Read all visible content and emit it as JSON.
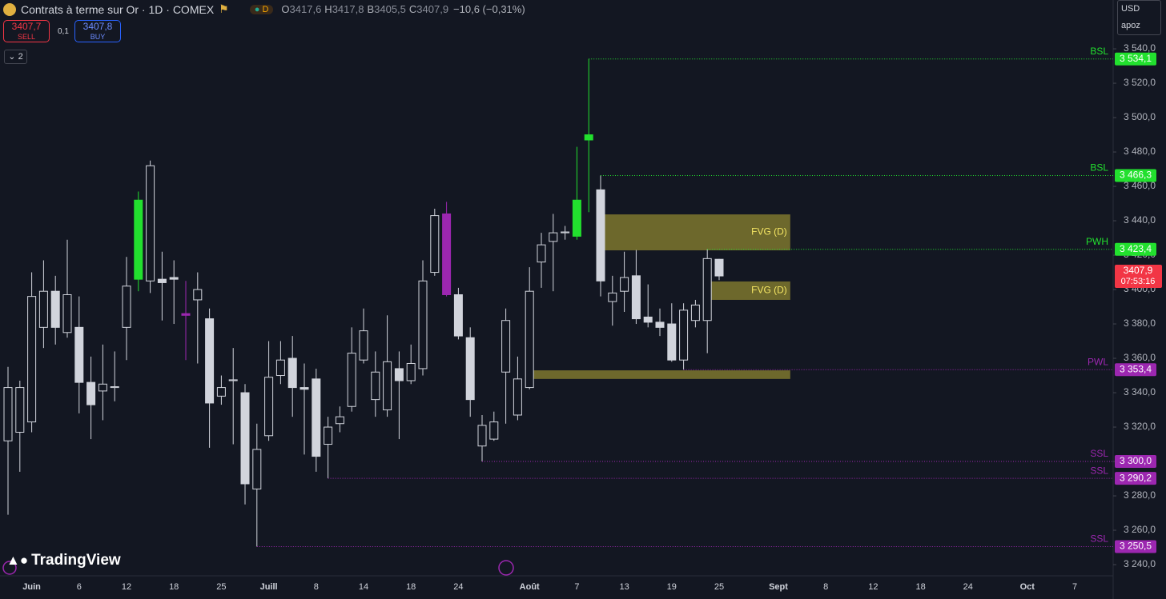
{
  "header": {
    "title": "Contrats à terme sur Or · 1D · COMEX",
    "badge": "D",
    "ohlc": [
      {
        "key": "O",
        "value": "3417,6"
      },
      {
        "key": "H",
        "value": "3417,8"
      },
      {
        "key": "B",
        "value": "3405,5"
      },
      {
        "key": "C",
        "value": "3407,9"
      }
    ],
    "change": "−10,6 (−0,31%)",
    "sell_price": "3407,7",
    "sell": "SELL",
    "spread": "0,1",
    "buy_price": "3407,8",
    "buy": "BUY",
    "indicators": "2",
    "currency": "USD",
    "user": "apoz",
    "brand": "TradingView"
  },
  "chart_data": {
    "type": "candlestick",
    "categories": [
      null,
      null,
      "Juin",
      null,
      null,
      null,
      "6",
      null,
      null,
      null,
      "12",
      null,
      null,
      null,
      "18",
      null,
      null,
      null,
      "25",
      null,
      null,
      null,
      "Juill",
      null,
      null,
      null,
      "8",
      null,
      null,
      null,
      "14",
      null,
      null,
      null,
      "18",
      null,
      null,
      null,
      "24",
      null,
      null,
      null,
      null,
      null,
      "Août",
      null,
      null,
      null,
      "7",
      null,
      null,
      null,
      "13",
      null,
      null,
      null,
      "19",
      null,
      null,
      null,
      "25",
      null,
      null,
      null,
      null,
      "Sept",
      null,
      null,
      null,
      "8",
      null,
      null,
      null,
      "12",
      null,
      null,
      null,
      "18",
      null,
      null,
      null,
      "24",
      null,
      null,
      null,
      null,
      "Oct",
      null,
      null,
      null,
      "7"
    ],
    "open": [
      3312,
      3317,
      3323,
      3378,
      3399,
      3375,
      3378,
      3346,
      3341,
      3343,
      3378,
      3406,
      3405,
      3406,
      3407,
      3386,
      3394,
      3383,
      3338,
      3347,
      3340,
      3284,
      3315,
      3350,
      3360,
      3343,
      3348,
      3310,
      3322,
      3332,
      3359,
      3336,
      3330,
      3354,
      3347,
      3354,
      3410,
      3444,
      3397,
      3372,
      3309,
      3313,
      3352,
      3327,
      3343,
      3416,
      3428,
      3433,
      3431,
      3487,
      3458,
      3393,
      3399,
      3408,
      3384,
      3381,
      3380,
      3359,
      3382,
      3382,
      3417.6,
      null,
      null,
      null,
      null,
      null,
      null,
      null,
      null,
      null,
      null,
      null,
      null,
      null,
      null,
      null,
      null,
      null,
      null,
      null,
      null,
      null,
      null,
      null,
      null,
      null,
      null,
      null,
      null,
      null,
      null
    ],
    "high": [
      3355,
      3347,
      3410,
      3417,
      3408,
      3429,
      3396,
      3361,
      3368,
      3364,
      3419,
      3457,
      3475,
      3422,
      3417,
      3405,
      3410,
      3389,
      3350,
      3366,
      3345,
      3322,
      3370,
      3370,
      3373,
      3357,
      3354,
      3326,
      3332,
      3378,
      3389,
      3364,
      3385,
      3364,
      3368,
      3417,
      3447,
      3451,
      3401,
      3378,
      3327,
      3329,
      3389,
      3361,
      3413,
      3433,
      3444,
      3437,
      3483,
      3534.1,
      3466.3,
      3408,
      3422,
      3423,
      3403,
      3389,
      3392,
      3392,
      3394,
      3423.4,
      3417.8,
      null,
      null,
      null,
      null,
      null,
      null,
      null,
      null,
      null,
      null,
      null,
      null,
      null,
      null,
      null,
      null,
      null,
      null,
      null,
      null,
      null,
      null,
      null,
      null,
      null,
      null,
      null,
      null,
      null,
      null
    ],
    "low": [
      3269,
      3294,
      3317,
      3366,
      3368,
      3372,
      3328,
      3313,
      3324,
      3335,
      3359,
      3399,
      3398,
      3382,
      3380,
      3359,
      3357,
      3308,
      3333,
      3310,
      3275,
      3250.5,
      3312,
      3345,
      3326,
      3304,
      3294,
      3290.2,
      3317,
      3329,
      3357,
      3326,
      3326,
      3313,
      3345,
      3350,
      3408,
      3396,
      3371,
      3326,
      3300,
      3312,
      3322,
      3324,
      3342,
      3401,
      3399,
      3429,
      3429,
      3445,
      3396,
      3379,
      3387,
      3380,
      3378,
      3373,
      3358,
      3353.4,
      3378,
      3363,
      3405.5,
      null,
      null,
      null,
      null,
      null,
      null,
      null,
      null,
      null,
      null,
      null,
      null,
      null,
      null,
      null,
      null,
      null,
      null,
      null,
      null,
      null,
      null,
      null,
      null,
      null,
      null,
      null,
      null,
      null,
      null
    ],
    "close": [
      3343,
      3343,
      3396,
      3399,
      3378,
      3397,
      3346,
      3333,
      3345,
      3343.5,
      3402,
      3452,
      3472,
      3404,
      3406,
      3385,
      3400,
      3334,
      3343,
      3347.5,
      3287,
      3307,
      3349,
      3359,
      3343,
      3342,
      3303,
      3320,
      3326,
      3363,
      3376,
      3352,
      3358,
      3347,
      3357,
      3405,
      3443,
      3397,
      3373,
      3336,
      3321,
      3323,
      3382,
      3348,
      3399,
      3426,
      3433,
      3433.5,
      3452,
      3490,
      3405,
      3398,
      3407,
      3383,
      3381,
      3378,
      3359,
      3388,
      3391,
      3418,
      3407.9,
      null,
      null,
      null,
      null,
      null,
      null,
      null,
      null,
      null,
      null,
      null,
      null,
      null,
      null,
      null,
      null,
      null,
      null,
      null,
      null,
      null,
      null,
      null,
      null,
      null,
      null,
      null,
      null,
      null,
      null
    ],
    "candle_color": "#d1d4dc",
    "background": "#131722",
    "highlights": [
      {
        "index": 11,
        "color": "#22e02e"
      },
      {
        "index": 15,
        "color": "#9c27b0"
      },
      {
        "index": 37,
        "color": "#9c27b0"
      },
      {
        "index": 48,
        "color": "#22e02e"
      },
      {
        "index": 49,
        "color": "#22e02e"
      }
    ],
    "ylim": [
      3233.5,
      3568.4
    ],
    "yticks": [
      {
        "value": 3240,
        "label": "3 240,0"
      },
      {
        "value": 3260,
        "label": "3 260,0"
      },
      {
        "value": 3280,
        "label": "3 280,0"
      },
      {
        "value": 3300,
        "label": "3 300,0"
      },
      {
        "value": 3320,
        "label": "3 320,0"
      },
      {
        "value": 3340,
        "label": "3 340,0"
      },
      {
        "value": 3360,
        "label": "3 360,0"
      },
      {
        "value": 3380,
        "label": "3 380,0"
      },
      {
        "value": 3400,
        "label": "3 400,0"
      },
      {
        "value": 3420,
        "label": "3 420,0"
      },
      {
        "value": 3440,
        "label": "3 440,0"
      },
      {
        "value": 3460,
        "label": "3 460,0"
      },
      {
        "value": 3480,
        "label": "3 480,0"
      },
      {
        "value": 3500,
        "label": "3 500,0"
      },
      {
        "value": 3520,
        "label": "3 520,0"
      },
      {
        "value": 3540,
        "label": "3 540,0"
      }
    ],
    "zones": [
      {
        "label": "FVG (D)",
        "low": 3422.8,
        "high": 3443.7,
        "x0": 50,
        "x1": 66,
        "color": "#8c8430"
      },
      {
        "label": "FVG (D)",
        "low": 3394,
        "high": 3404.7,
        "x0": 59,
        "x1": 66,
        "color": "#8c8430"
      },
      {
        "low": 3348,
        "high": 3353,
        "x0": 44,
        "x1": 66,
        "color": "#8c8430"
      }
    ],
    "levels": [
      {
        "name": "BSL",
        "value": 3534.1,
        "label": "3 534,1",
        "color": "#22e02e"
      },
      {
        "name": "BSL",
        "value": 3466.3,
        "label": "3 466,3",
        "color": "#22e02e"
      },
      {
        "name": "PWH",
        "value": 3423.4,
        "label": "3 423,4",
        "color": "#22e02e"
      },
      {
        "name": "PWL",
        "value": 3353.4,
        "label": "3 353,4",
        "color": "#9c27b0"
      },
      {
        "name": "SSL",
        "value": 3300.0,
        "label": "3 300,0",
        "color": "#9c27b0"
      },
      {
        "name": "SSL",
        "value": 3290.2,
        "label": "3 290,2",
        "color": "#9c27b0"
      },
      {
        "name": "SSL",
        "value": 3250.5,
        "label": "3 250,5",
        "color": "#9c27b0"
      }
    ],
    "last_price": {
      "value": 3407.9,
      "label": "3407,9",
      "countdown": "07:53:16",
      "color": "#f23645"
    }
  }
}
